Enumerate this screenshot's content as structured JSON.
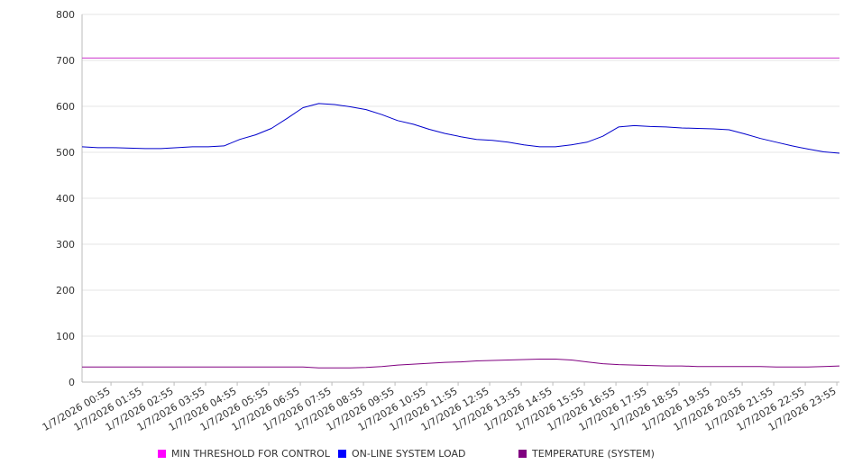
{
  "chart_data": {
    "type": "line",
    "title": "",
    "xlabel": "",
    "ylabel": "",
    "ylim": [
      0,
      800
    ],
    "yticks": [
      0,
      100,
      200,
      300,
      400,
      500,
      600,
      700,
      800
    ],
    "grid": "horizontal",
    "legend_position": "bottom",
    "x_tick_labels": [
      "1/7/2026 00:55",
      "1/7/2026 01:55",
      "1/7/2026 02:55",
      "1/7/2026 03:55",
      "1/7/2026 04:55",
      "1/7/2026 05:55",
      "1/7/2026 06:55",
      "1/7/2026 07:55",
      "1/7/2026 08:55",
      "1/7/2026 09:55",
      "1/7/2026 10:55",
      "1/7/2026 11:55",
      "1/7/2026 12:55",
      "1/7/2026 13:55",
      "1/7/2026 14:55",
      "1/7/2026 15:55",
      "1/7/2026 16:55",
      "1/7/2026 17:55",
      "1/7/2026 18:55",
      "1/7/2026 19:55",
      "1/7/2026 20:55",
      "1/7/2026 21:55",
      "1/7/2026 22:55",
      "1/7/2026 23:55"
    ],
    "x": [
      "1/7/2026 00:00",
      "1/7/2026 00:30",
      "1/7/2026 01:00",
      "1/7/2026 01:30",
      "1/7/2026 02:00",
      "1/7/2026 02:30",
      "1/7/2026 03:00",
      "1/7/2026 03:30",
      "1/7/2026 04:00",
      "1/7/2026 04:30",
      "1/7/2026 05:00",
      "1/7/2026 05:30",
      "1/7/2026 06:00",
      "1/7/2026 06:30",
      "1/7/2026 07:00",
      "1/7/2026 07:30",
      "1/7/2026 08:00",
      "1/7/2026 08:30",
      "1/7/2026 09:00",
      "1/7/2026 09:30",
      "1/7/2026 10:00",
      "1/7/2026 10:30",
      "1/7/2026 11:00",
      "1/7/2026 11:30",
      "1/7/2026 12:00",
      "1/7/2026 12:30",
      "1/7/2026 13:00",
      "1/7/2026 13:30",
      "1/7/2026 14:00",
      "1/7/2026 14:30",
      "1/7/2026 15:00",
      "1/7/2026 15:30",
      "1/7/2026 16:00",
      "1/7/2026 16:30",
      "1/7/2026 17:00",
      "1/7/2026 17:30",
      "1/7/2026 18:00",
      "1/7/2026 18:30",
      "1/7/2026 19:00",
      "1/7/2026 19:30",
      "1/7/2026 20:00",
      "1/7/2026 20:30",
      "1/7/2026 21:00",
      "1/7/2026 21:30",
      "1/7/2026 22:00",
      "1/7/2026 22:30",
      "1/7/2026 23:00",
      "1/7/2026 23:30",
      "1/8/2026 00:00"
    ],
    "series": [
      {
        "name": "MIN THRESHOLD FOR CONTROL",
        "color": "#cc33cc",
        "values": [
          705,
          705,
          705,
          705,
          705,
          705,
          705,
          705,
          705,
          705,
          705,
          705,
          705,
          705,
          705,
          705,
          705,
          705,
          705,
          705,
          705,
          705,
          705,
          705,
          705,
          705,
          705,
          705,
          705,
          705,
          705,
          705,
          705,
          705,
          705,
          705,
          705,
          705,
          705,
          705,
          705,
          705,
          705,
          705,
          705,
          705,
          705,
          705,
          705
        ]
      },
      {
        "name": "ON-LINE SYSTEM LOAD",
        "color": "#0000cc",
        "values": [
          512,
          510,
          510,
          509,
          508,
          508,
          510,
          512,
          512,
          514,
          528,
          538,
          552,
          574,
          597,
          606,
          604,
          599,
          593,
          582,
          569,
          561,
          550,
          541,
          534,
          528,
          526,
          522,
          516,
          512,
          512,
          516,
          522,
          535,
          555,
          558,
          556,
          555,
          553,
          552,
          551,
          549,
          540,
          530,
          522,
          514,
          507,
          501,
          498
        ]
      },
      {
        "name": "TEMPERATURE (SYSTEM)",
        "color": "#800080",
        "values": [
          33,
          33,
          33,
          33,
          33,
          33,
          33,
          33,
          33,
          33,
          33,
          33,
          33,
          33,
          33,
          31,
          31,
          31,
          32,
          34,
          37,
          39,
          41,
          43,
          44,
          46,
          47,
          48,
          49,
          50,
          50,
          48,
          44,
          40,
          38,
          37,
          36,
          35,
          35,
          34,
          34,
          34,
          34,
          34,
          33,
          33,
          33,
          34,
          35
        ]
      }
    ]
  }
}
